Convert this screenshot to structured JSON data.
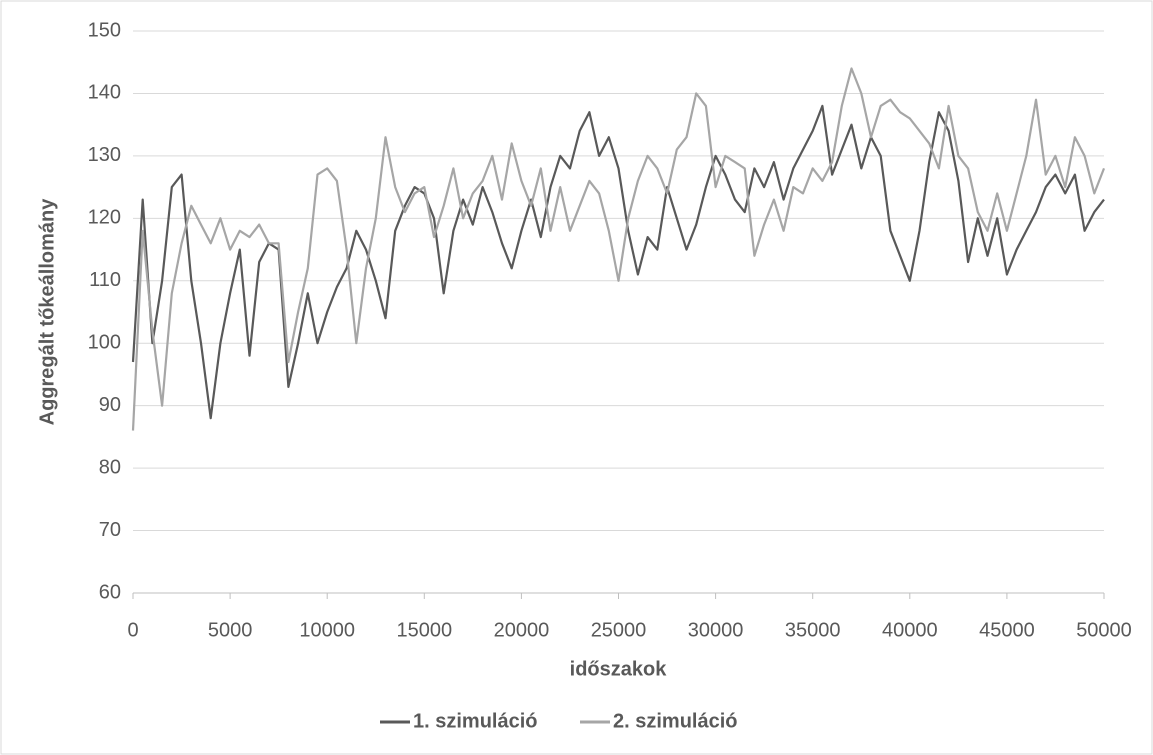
{
  "chart_data": {
    "type": "line",
    "x_label": "időszakok",
    "y_label": "Aggregált tőkeállomány",
    "x": [
      0,
      500,
      1000,
      1500,
      2000,
      2500,
      3000,
      3500,
      4000,
      4500,
      5000,
      5500,
      6000,
      6500,
      7000,
      7500,
      8000,
      8500,
      9000,
      9500,
      10000,
      10500,
      11000,
      11500,
      12000,
      12500,
      13000,
      13500,
      14000,
      14500,
      15000,
      15500,
      16000,
      16500,
      17000,
      17500,
      18000,
      18500,
      19000,
      19500,
      20000,
      20500,
      21000,
      21500,
      22000,
      22500,
      23000,
      23500,
      24000,
      24500,
      25000,
      25500,
      26000,
      26500,
      27000,
      27500,
      28000,
      28500,
      29000,
      29500,
      30000,
      30500,
      31000,
      31500,
      32000,
      32500,
      33000,
      33500,
      34000,
      34500,
      35000,
      35500,
      36000,
      36500,
      37000,
      37500,
      38000,
      38500,
      39000,
      39500,
      40000,
      40500,
      41000,
      41500,
      42000,
      42500,
      43000,
      43500,
      44000,
      44500,
      45000,
      45500,
      46000,
      46500,
      47000,
      47500,
      48000,
      48500,
      49000,
      49500,
      50000
    ],
    "series": [
      {
        "name": "1. szimuláció",
        "color": "#595959",
        "values": [
          97,
          123,
          100,
          110,
          125,
          127,
          110,
          100,
          88,
          100,
          108,
          115,
          98,
          113,
          116,
          115,
          93,
          100,
          108,
          100,
          105,
          109,
          112,
          118,
          115,
          110,
          104,
          118,
          122,
          125,
          124,
          120,
          108,
          118,
          123,
          119,
          125,
          121,
          116,
          112,
          118,
          123,
          117,
          125,
          130,
          128,
          134,
          137,
          130,
          133,
          128,
          118,
          111,
          117,
          115,
          125,
          120,
          115,
          119,
          125,
          130,
          127,
          123,
          121,
          128,
          125,
          129,
          123,
          128,
          131,
          134,
          138,
          127,
          131,
          135,
          128,
          133,
          130,
          118,
          114,
          110,
          118,
          129,
          137,
          134,
          126,
          113,
          120,
          114,
          120,
          111,
          115,
          118,
          121,
          125,
          127,
          124,
          127,
          118,
          121,
          123
        ]
      },
      {
        "name": "2. szimuláció",
        "color": "#a6a6a6",
        "values": [
          86,
          118,
          102,
          90,
          108,
          116,
          122,
          119,
          116,
          120,
          115,
          118,
          117,
          119,
          116,
          116,
          97,
          105,
          112,
          127,
          128,
          126,
          115,
          100,
          112,
          120,
          133,
          125,
          121,
          124,
          125,
          117,
          122,
          128,
          120,
          124,
          126,
          130,
          123,
          132,
          126,
          122,
          128,
          118,
          125,
          118,
          122,
          126,
          124,
          118,
          110,
          120,
          126,
          130,
          128,
          124,
          131,
          133,
          140,
          138,
          125,
          130,
          129,
          128,
          114,
          119,
          123,
          118,
          125,
          124,
          128,
          126,
          129,
          138,
          144,
          140,
          133,
          138,
          139,
          137,
          136,
          134,
          132,
          128,
          138,
          130,
          128,
          121,
          118,
          124,
          118,
          124,
          130,
          139,
          127,
          130,
          125,
          133,
          130,
          124,
          128
        ]
      }
    ],
    "xlim": [
      0,
      50000
    ],
    "xticks": [
      0,
      5000,
      10000,
      15000,
      20000,
      25000,
      30000,
      35000,
      40000,
      45000,
      50000
    ],
    "ylim": [
      60,
      150
    ],
    "yticks": [
      60,
      70,
      80,
      90,
      100,
      110,
      120,
      130,
      140,
      150
    ],
    "grid": true,
    "legend": "bottom"
  }
}
